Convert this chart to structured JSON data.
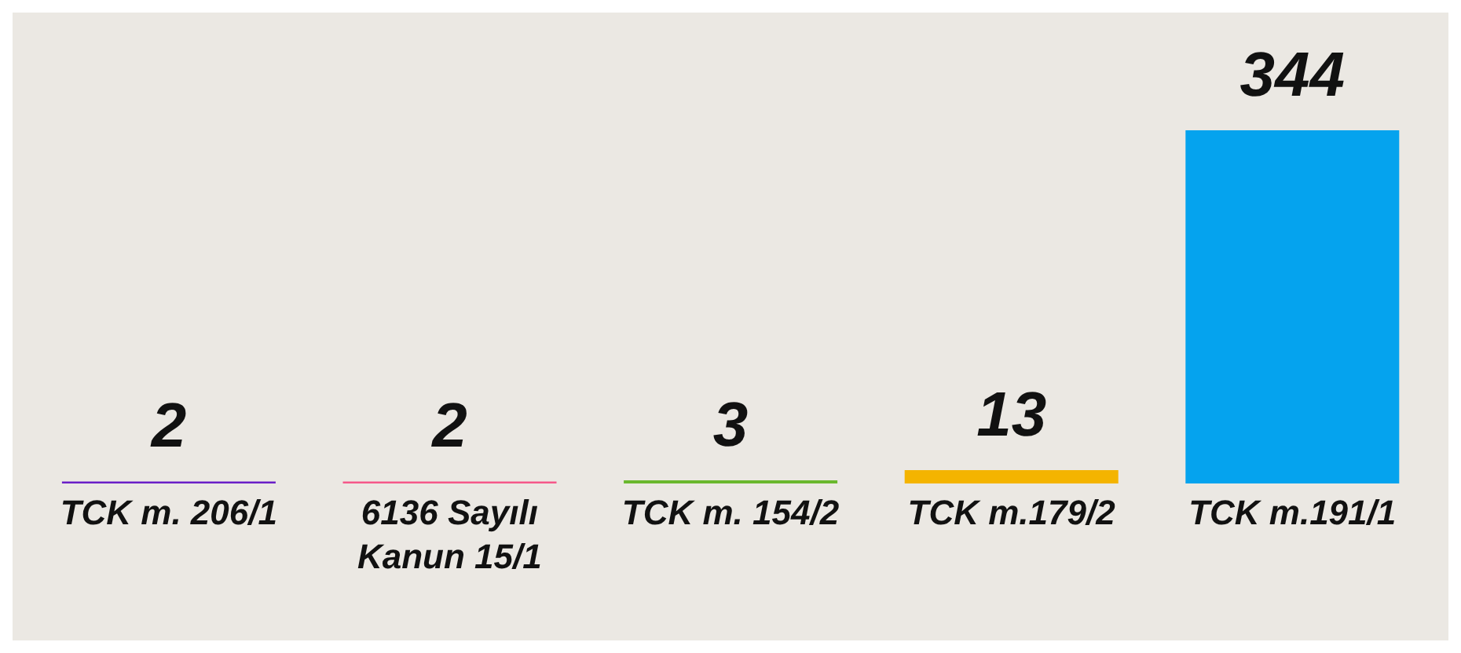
{
  "chart_data": {
    "type": "bar",
    "categories": [
      "TCK m. 206/1",
      "6136 Sayılı Kanun 15/1",
      "TCK m. 154/2",
      "TCK m.179/2",
      "TCK m.191/1"
    ],
    "values": [
      2,
      2,
      3,
      13,
      344
    ],
    "colors": [
      "#6a1fc8",
      "#f5588a",
      "#6ab82e",
      "#f4b400",
      "#05a3ee"
    ],
    "data_labels": true,
    "grid": false,
    "legend": false
  }
}
